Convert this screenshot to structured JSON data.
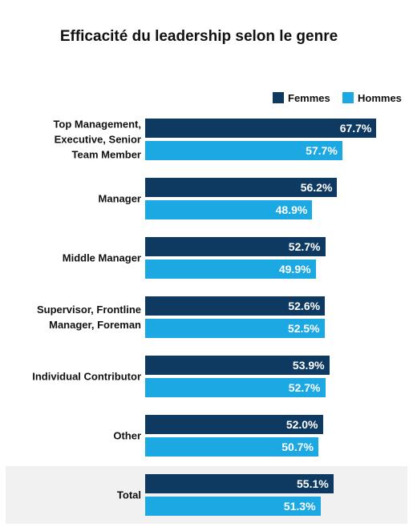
{
  "chart_data": {
    "type": "bar",
    "orientation": "horizontal",
    "title": "Efficacité du leadership selon le genre",
    "categories": [
      "Top Management,\nExecutive, Senior\nTeam Member",
      "Manager",
      "Middle Manager",
      "Supervisor, Frontline\nManager, Foreman",
      "Individual Contributor",
      "Other",
      "Total"
    ],
    "series": [
      {
        "name": "Femmes",
        "color": "#0e3a62",
        "values": [
          67.7,
          56.2,
          52.7,
          52.6,
          53.9,
          52.0,
          55.1
        ],
        "value_labels": [
          "67.7%",
          "56.2%",
          "52.7%",
          "52.6%",
          "53.9%",
          "52.0%",
          "55.1%"
        ]
      },
      {
        "name": "Hommes",
        "color": "#1ca8e2",
        "values": [
          57.7,
          48.9,
          49.9,
          52.5,
          52.7,
          50.7,
          51.3
        ],
        "value_labels": [
          "57.7%",
          "48.9%",
          "49.9%",
          "52.5%",
          "52.7%",
          "50.7%",
          "51.3%"
        ]
      }
    ],
    "legend": "top-right"
  }
}
